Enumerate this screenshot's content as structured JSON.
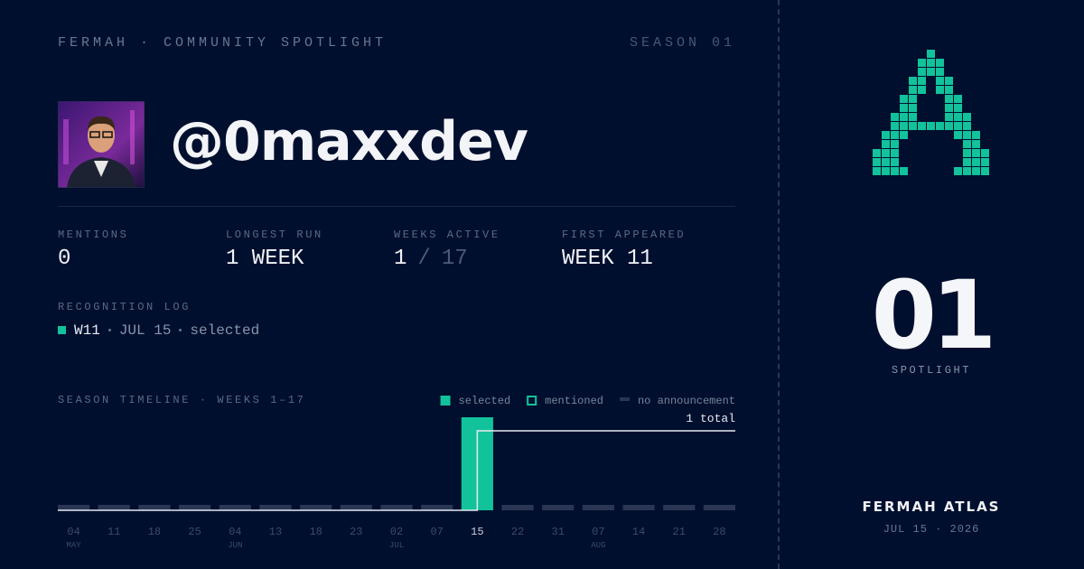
{
  "header": {
    "brand": "FERMAH · COMMUNITY SPOTLIGHT",
    "season": "SEASON 01"
  },
  "profile": {
    "handle": "@0maxxdev"
  },
  "stats": [
    {
      "label": "MENTIONS",
      "value": "0"
    },
    {
      "label": "LONGEST RUN",
      "value": "1 WEEK"
    },
    {
      "label": "WEEKS ACTIVE",
      "value": "1",
      "separator": "/",
      "total": "17"
    },
    {
      "label": "FIRST APPEARED",
      "value": "WEEK 11"
    }
  ],
  "log": {
    "title": "RECOGNITION LOG",
    "entries": [
      {
        "week": "W11",
        "date": "JUL 15",
        "status": "selected"
      }
    ]
  },
  "timeline": {
    "title": "SEASON TIMELINE · WEEKS 1–17",
    "legend": [
      {
        "name": "selected",
        "color": "#12c29b",
        "style": "filled"
      },
      {
        "name": "mentioned",
        "color": "#12c29b",
        "style": "outline"
      },
      {
        "name": "no announcement",
        "color": "#2a3654",
        "style": "dash"
      }
    ],
    "total_label": "1 total",
    "weeks": [
      {
        "day": "04",
        "month": "MAY",
        "status": "no announcement"
      },
      {
        "day": "11",
        "status": "no announcement"
      },
      {
        "day": "18",
        "status": "no announcement"
      },
      {
        "day": "25",
        "status": "no announcement"
      },
      {
        "day": "04",
        "month": "JUN",
        "status": "no announcement"
      },
      {
        "day": "13",
        "status": "no announcement"
      },
      {
        "day": "18",
        "status": "no announcement"
      },
      {
        "day": "23",
        "status": "no announcement"
      },
      {
        "day": "02",
        "month": "JUL",
        "status": "no announcement"
      },
      {
        "day": "07",
        "status": "no announcement"
      },
      {
        "day": "15",
        "status": "selected"
      },
      {
        "day": "22",
        "status": "no announcement"
      },
      {
        "day": "31",
        "status": "no announcement"
      },
      {
        "day": "07",
        "month": "AUG",
        "status": "no announcement"
      },
      {
        "day": "14",
        "status": "no announcement"
      },
      {
        "day": "21",
        "status": "no announcement"
      },
      {
        "day": "28",
        "status": "no announcement"
      }
    ]
  },
  "sidebar": {
    "rank": "01",
    "rank_label": "SPOTLIGHT",
    "brand": "FERMAH ATLAS",
    "date": "JUL 15 · 2026"
  }
}
